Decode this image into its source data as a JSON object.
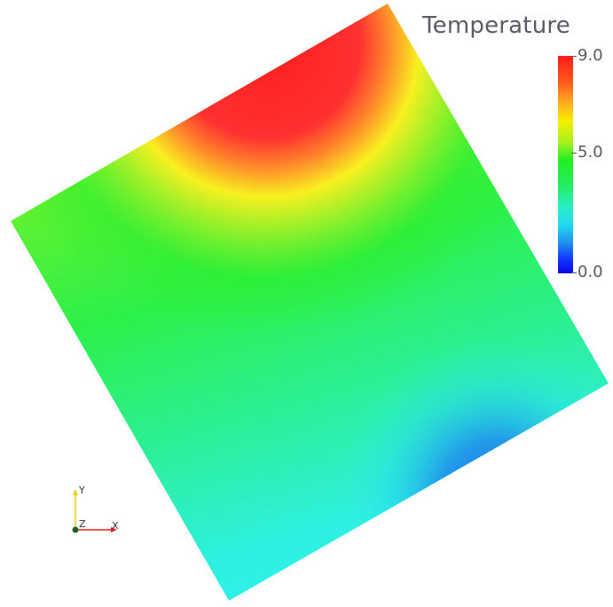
{
  "legend": {
    "title": "Temperature",
    "ticks": [
      {
        "label": "9.0",
        "value": 9.0
      },
      {
        "label": "5.0",
        "value": 5.0
      },
      {
        "label": "0.0",
        "value": 0.0
      }
    ],
    "range": [
      0.0,
      9.0
    ]
  },
  "orientation_axes": {
    "x_label": "X",
    "y_label": "Y",
    "z_label": "Z",
    "x_color": "#e02020",
    "y_color": "#e8d020",
    "z_color": "#206020"
  },
  "colors": {
    "background": "#ffffff",
    "hot": "#ff2a2a",
    "warm": "#f6f000",
    "mid": "#22ee22",
    "cool": "#28efe6",
    "cold": "#1f7fe8"
  }
}
